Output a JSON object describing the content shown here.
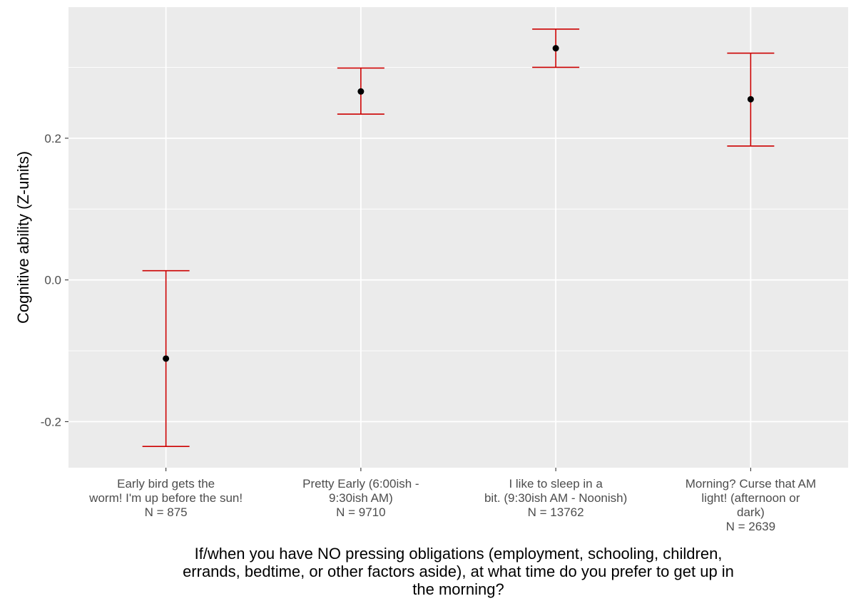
{
  "chart_data": {
    "type": "errorbar",
    "title": "",
    "xlabel_lines": [
      "If/when you have NO pressing obligations (employment, schooling, children,",
      "errands, bedtime, or other factors aside), at what time do you prefer to get up in",
      "the morning?"
    ],
    "ylabel": "Cognitive ability (Z-units)",
    "ylim": [
      -0.265,
      0.385
    ],
    "yticks": [
      -0.2,
      0.0,
      0.2
    ],
    "ytick_labels": [
      "-0.2",
      "0.0",
      "0.2"
    ],
    "grid": true,
    "categories": [
      {
        "label_lines": [
          "Early bird gets the",
          "worm! I'm up before the sun!",
          "N = 875"
        ],
        "mean": -0.111,
        "lower": -0.235,
        "upper": 0.013
      },
      {
        "label_lines": [
          "Pretty Early (6:00ish -",
          "9:30ish AM)",
          "N = 9710"
        ],
        "mean": 0.266,
        "lower": 0.234,
        "upper": 0.299
      },
      {
        "label_lines": [
          "I like to sleep in a",
          "bit. (9:30ish AM - Noonish)",
          "N = 13762"
        ],
        "mean": 0.327,
        "lower": 0.3,
        "upper": 0.354
      },
      {
        "label_lines": [
          "Morning? Curse that AM",
          "light! (afternoon or",
          "dark)",
          "N = 2639"
        ],
        "mean": 0.255,
        "lower": 0.189,
        "upper": 0.32
      }
    ],
    "colors": {
      "panel": "#ebebeb",
      "grid": "#ffffff",
      "errorbar": "#cc0000",
      "point": "#000000"
    }
  }
}
